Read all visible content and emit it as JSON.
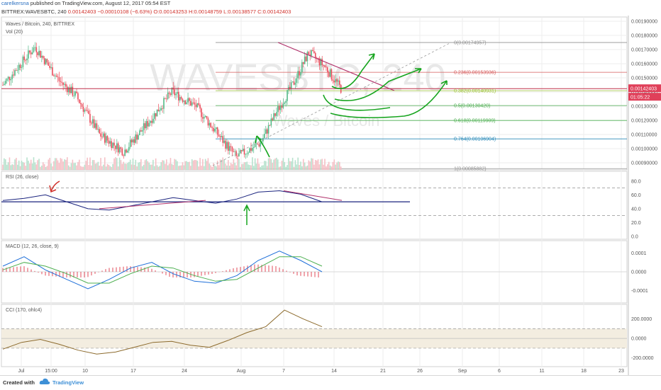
{
  "header": {
    "author": "carelkersna",
    "published": "published on TradingView.com, August 12, 2017 05:54 EST",
    "ticker_line_prefix": "BITTREX:WAVESBTC, 240",
    "last": "0.00142403",
    "change": "−0.00010108 (−6.63%)",
    "ohlc": "O:0.00143253 H:0.00148759 L:0.00138577 C:0.00142403"
  },
  "panes": {
    "main": {
      "title": "Waves / Bitcoin, 240, BITTREX",
      "sub": "Vol (20)",
      "watermark": "WAVESBTC, 240",
      "watermark2": "Waves / Bitcoin"
    },
    "rsi": {
      "title": "RSI (26, close)"
    },
    "macd": {
      "title": "MACD (12, 26, close, 9)"
    },
    "cci": {
      "title": "CCI (170, ohlc4)"
    }
  },
  "price_axis": {
    "ticks": [
      "0.00190000",
      "0.00180000",
      "0.00170000",
      "0.00160000",
      "0.00150000",
      "0.00140000",
      "0.00130000",
      "0.00120000",
      "0.00110000",
      "0.00100000",
      "0.00090000"
    ],
    "last_price_label": "0.00142403",
    "countdown_label": "01:05:22"
  },
  "rsi_axis": {
    "ticks": [
      "80.0",
      "60.0",
      "40.0",
      "20.0",
      "0.0"
    ]
  },
  "macd_axis": {
    "ticks": [
      "0.0001",
      "0.0000",
      "-0.0001"
    ]
  },
  "cci_axis": {
    "ticks": [
      "200.0000",
      "0.0000",
      "-200.0000"
    ]
  },
  "time_axis": {
    "ticks": [
      "Jul",
      "15:00",
      "10",
      "17",
      "24",
      "Aug",
      "7",
      "14",
      "21",
      "26",
      "Sep",
      "6",
      "11",
      "18",
      "23"
    ]
  },
  "fib_levels": [
    "0(0.00174957)",
    "0.236(0.00153936)",
    "0.382(0.00140931)",
    "0.5(0.00130420)",
    "0.618(0.00119909)",
    "0.764(0.00106904)",
    "1(0.00085882)"
  ],
  "footer": {
    "created_with": "Created with",
    "brand": "TradingView"
  },
  "colors": {
    "up": "#53b987",
    "down": "#eb4d5c",
    "fib_green": "#4caf50",
    "resistance": "#b0306a",
    "rsi_line": "#1a237e",
    "macd": "#1e6fd9",
    "signal": "#4caf50",
    "cci": "#8c6a2c",
    "drawn_arrows": "#17a51f"
  },
  "chart_data": [
    {
      "type": "candlestick",
      "title": "Waves / Bitcoin, 240, BITTREX",
      "x_ticks": [
        "Jul",
        "15:00",
        "10",
        "17",
        "24",
        "Aug",
        "7",
        "14",
        "21",
        "26",
        "Sep",
        "6",
        "11",
        "18",
        "23"
      ],
      "ylim": [
        0.00085,
        0.00193
      ],
      "close_path": [
        {
          "x": "Jul 1",
          "close": 0.00145
        },
        {
          "x": "Jul 5",
          "close": 0.00172
        },
        {
          "x": "Jul 8",
          "close": 0.00148
        },
        {
          "x": "Jul 10",
          "close": 0.00138
        },
        {
          "x": "Jul 13",
          "close": 0.0011
        },
        {
          "x": "Jul 16",
          "close": 0.00098
        },
        {
          "x": "Jul 19",
          "close": 0.00118
        },
        {
          "x": "Jul 22",
          "close": 0.0014
        },
        {
          "x": "Jul 25",
          "close": 0.0013
        },
        {
          "x": "Jul 28",
          "close": 0.00108
        },
        {
          "x": "Jul 30",
          "close": 0.00094
        },
        {
          "x": "Aug 2",
          "close": 0.00104
        },
        {
          "x": "Aug 4",
          "close": 0.00126
        },
        {
          "x": "Aug 6",
          "close": 0.00145
        },
        {
          "x": "Aug 8",
          "close": 0.00168
        },
        {
          "x": "Aug 10",
          "close": 0.00158
        },
        {
          "x": "Aug 12",
          "close": 0.00142403
        }
      ],
      "fibonacci": [
        {
          "level": 0,
          "price": 0.00174957
        },
        {
          "level": 0.236,
          "price": 0.00153936
        },
        {
          "level": 0.382,
          "price": 0.00140931
        },
        {
          "level": 0.5,
          "price": 0.0013042
        },
        {
          "level": 0.618,
          "price": 0.00119909
        },
        {
          "level": 0.764,
          "price": 0.00106904
        },
        {
          "level": 1,
          "price": 0.00085882
        }
      ],
      "last_price": 0.00142403
    },
    {
      "type": "line",
      "title": "RSI (26, close)",
      "ylim": [
        0,
        90
      ],
      "band": [
        30,
        70
      ],
      "values": [
        52,
        55,
        60,
        50,
        40,
        38,
        44,
        50,
        56,
        52,
        48,
        54,
        64,
        66,
        61,
        50
      ]
    },
    {
      "type": "line",
      "title": "MACD (12, 26, close, 9)",
      "ylim": [
        -0.00015,
        0.00015
      ],
      "series": [
        {
          "name": "MACD",
          "values": [
            3e-05,
            8e-05,
            1e-05,
            -4e-05,
            -9e-05,
            -4e-05,
            2e-05,
            5e-05,
            -1e-05,
            -5e-05,
            -6e-05,
            -2e-05,
            6e-05,
            0.00011,
            6e-05,
            0.0
          ]
        },
        {
          "name": "Signal",
          "values": [
            1e-05,
            5e-05,
            3e-05,
            -1e-05,
            -6e-05,
            -6e-05,
            -1e-05,
            3e-05,
            2e-05,
            -2e-05,
            -5e-05,
            -4e-05,
            2e-05,
            8e-05,
            8e-05,
            3e-05
          ]
        }
      ]
    },
    {
      "type": "line",
      "title": "CCI (170, ohlc4)",
      "ylim": [
        -260,
        320
      ],
      "band": [
        -100,
        100
      ],
      "values": [
        -110,
        -40,
        -10,
        -60,
        -120,
        -160,
        -140,
        -90,
        -40,
        -30,
        -70,
        -90,
        -20,
        60,
        120,
        290,
        200,
        120
      ]
    }
  ]
}
